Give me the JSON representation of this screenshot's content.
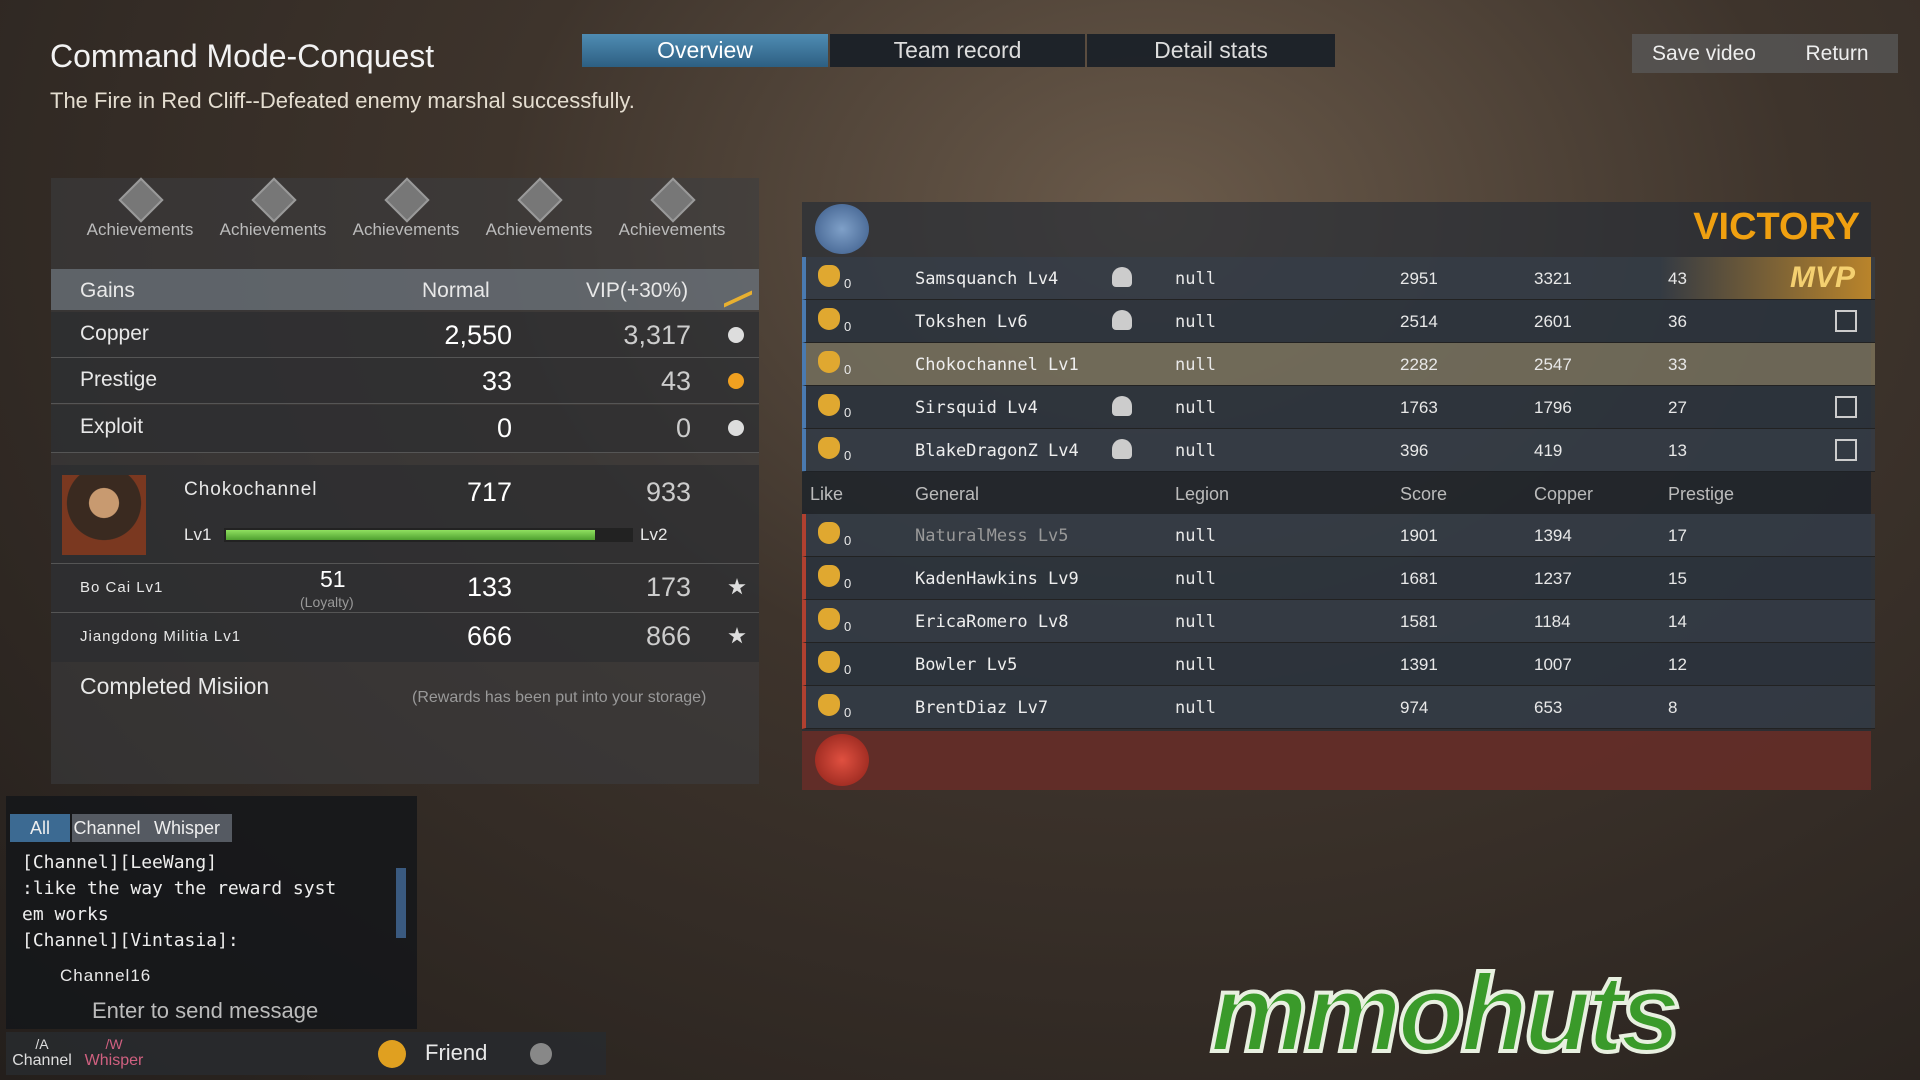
{
  "header": {
    "title": "Command Mode-Conquest",
    "subtitle": "The Fire in Red Cliff--Defeated enemy marshal successfully."
  },
  "tabs": [
    "Overview",
    "Team record",
    "Detail stats"
  ],
  "buttons": [
    "Save video",
    "Return"
  ],
  "achievements": [
    "Achievements",
    "Achievements",
    "Achievements",
    "Achievements",
    "Achievements"
  ],
  "gains": {
    "header": [
      "Gains",
      "Normal",
      "VIP(+30%)"
    ],
    "rows": [
      [
        "Copper",
        "2,550",
        "3,317"
      ],
      [
        "Prestige",
        "33",
        "43"
      ],
      [
        "Exploit",
        "0",
        "0"
      ]
    ]
  },
  "character": {
    "name": "Chokochannel",
    "normal": "717",
    "vip": "933",
    "level": "Lv1",
    "next_level": "Lv2",
    "exp_progress": 0.91
  },
  "units": [
    {
      "name": "Bo Cai  Lv1",
      "loyalty": "51",
      "loyalty_label": "(Loyalty)",
      "normal": "133",
      "vip": "173"
    },
    {
      "name": "Jiangdong Militia Lv1",
      "normal": "666",
      "vip": "866"
    }
  ],
  "mission": {
    "title": "Completed Misiion",
    "note": "(Rewards has been put into your storage)"
  },
  "scoreboard": {
    "result": "VICTORY",
    "mvp": "MVP",
    "columns": [
      "Like",
      "General",
      "Legion",
      "Score",
      "Copper",
      "Prestige"
    ],
    "winners": [
      [
        "0",
        "Samsquanch Lv4",
        "null",
        "2951",
        "3321",
        "43"
      ],
      [
        "0",
        "Tokshen Lv6",
        "null",
        "2514",
        "2601",
        "36"
      ],
      [
        "0",
        "Chokochannel Lv1",
        "null",
        "2282",
        "2547",
        "33"
      ],
      [
        "0",
        "Sirsquid Lv4",
        "null",
        "1763",
        "1796",
        "27"
      ],
      [
        "0",
        "BlakeDragonZ Lv4",
        "null",
        "396",
        "419",
        "13"
      ]
    ],
    "losers": [
      [
        "0",
        "NaturalMess Lv5",
        "null",
        "1901",
        "1394",
        "17"
      ],
      [
        "0",
        "KadenHawkins Lv9",
        "null",
        "1681",
        "1237",
        "15"
      ],
      [
        "0",
        "EricaRomero Lv8",
        "null",
        "1581",
        "1184",
        "14"
      ],
      [
        "0",
        "Bowler Lv5",
        "null",
        "1391",
        "1007",
        "12"
      ],
      [
        "0",
        "BrentDiaz Lv7",
        "null",
        "974",
        "653",
        "8"
      ]
    ]
  },
  "chat": {
    "tabs": [
      "All",
      "Channel",
      "Whisper"
    ],
    "messages": [
      "[Channel][LeeWang]",
      ":like the way the reward syst",
      "em works",
      "[Channel][Vintasia]:"
    ],
    "channel": "Channel16",
    "input": "Enter to send message"
  },
  "bottom_bar": {
    "shortcuts": [
      [
        "/A",
        "Channel"
      ],
      [
        "/W",
        "Whisper"
      ]
    ],
    "friend": "Friend"
  },
  "watermark": "mmohuts"
}
